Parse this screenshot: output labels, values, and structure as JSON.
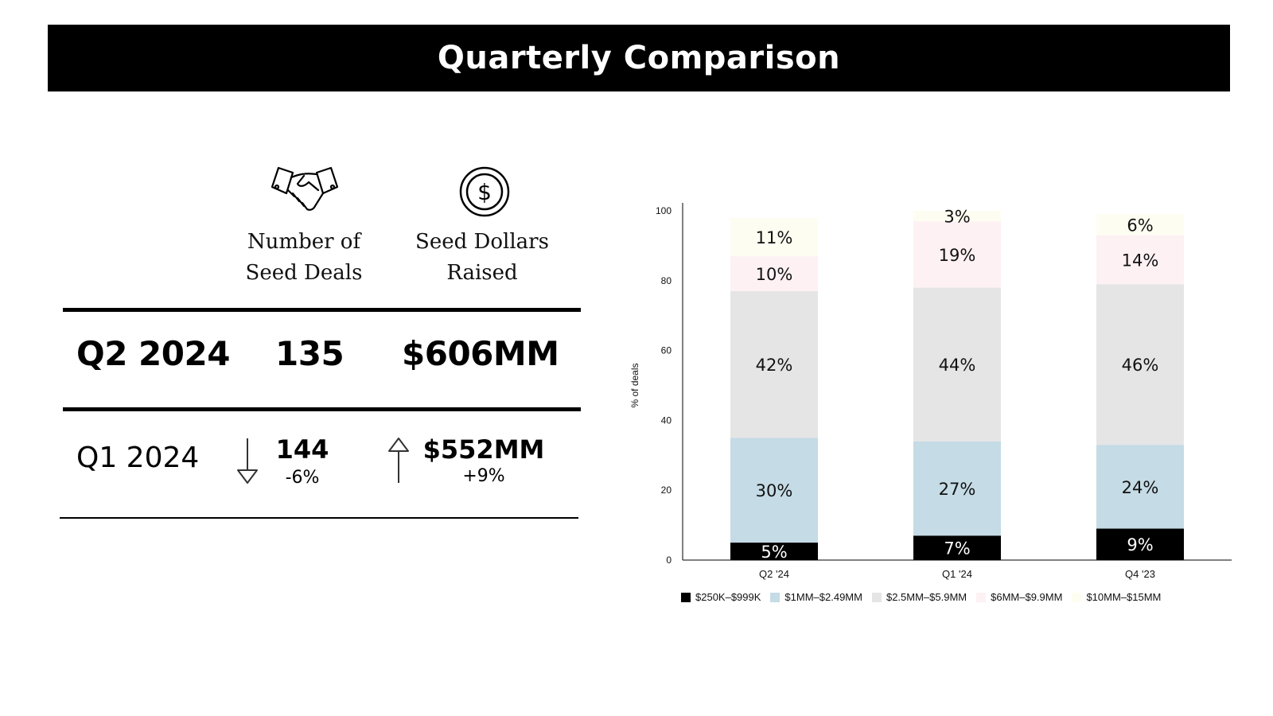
{
  "title": "Quarterly Comparison",
  "table": {
    "col1_head_line1": "Number of",
    "col1_head_line2": "Seed Deals",
    "col2_head_line1": "Seed Dollars",
    "col2_head_line2": "Raised",
    "current": {
      "period": "Q2 2024",
      "deals": "135",
      "dollars": "$606MM"
    },
    "previous": {
      "period": "Q1 2024",
      "deals": "144",
      "deals_change": "-6%",
      "deals_trend": "down",
      "dollars": "$552MM",
      "dollars_change": "+9%",
      "dollars_trend": "up"
    },
    "icons": [
      "handshake-icon",
      "dollar-coin-icon",
      "arrow-down-icon",
      "arrow-up-icon"
    ]
  },
  "chart_data": {
    "type": "bar",
    "stacked": true,
    "categories": [
      "Q2 '24",
      "Q1 '24",
      "Q4 '23"
    ],
    "ylabel": "% of deals",
    "xlabel": "",
    "ylim": [
      0,
      100
    ],
    "yticks": [
      0,
      20,
      40,
      60,
      80,
      100
    ],
    "grid": false,
    "legend_position": "bottom",
    "series": [
      {
        "name": "$250K–$999K",
        "color": "#000000",
        "label_color": "#ffffff",
        "values": [
          5,
          7,
          9
        ],
        "labels": [
          "5%",
          "7%",
          "9%"
        ]
      },
      {
        "name": "$1MM–$2.49MM",
        "color": "#c5dbe5",
        "label_color": "#111111",
        "values": [
          30,
          27,
          24
        ],
        "labels": [
          "30%",
          "27%",
          "24%"
        ]
      },
      {
        "name": "$2.5MM–$5.9MM",
        "color": "#e5e5e5",
        "label_color": "#111111",
        "values": [
          42,
          44,
          46
        ],
        "labels": [
          "42%",
          "44%",
          "46%"
        ]
      },
      {
        "name": "$6MM–$9.9MM",
        "color": "#fdf1f4",
        "label_color": "#111111",
        "values": [
          10,
          19,
          14
        ],
        "labels": [
          "10%",
          "19%",
          "14%"
        ]
      },
      {
        "name": "$10MM–$15MM",
        "color": "#fefdf1",
        "label_color": "#111111",
        "values": [
          11,
          3,
          6
        ],
        "labels": [
          "11%",
          "3%",
          "6%"
        ]
      }
    ]
  }
}
